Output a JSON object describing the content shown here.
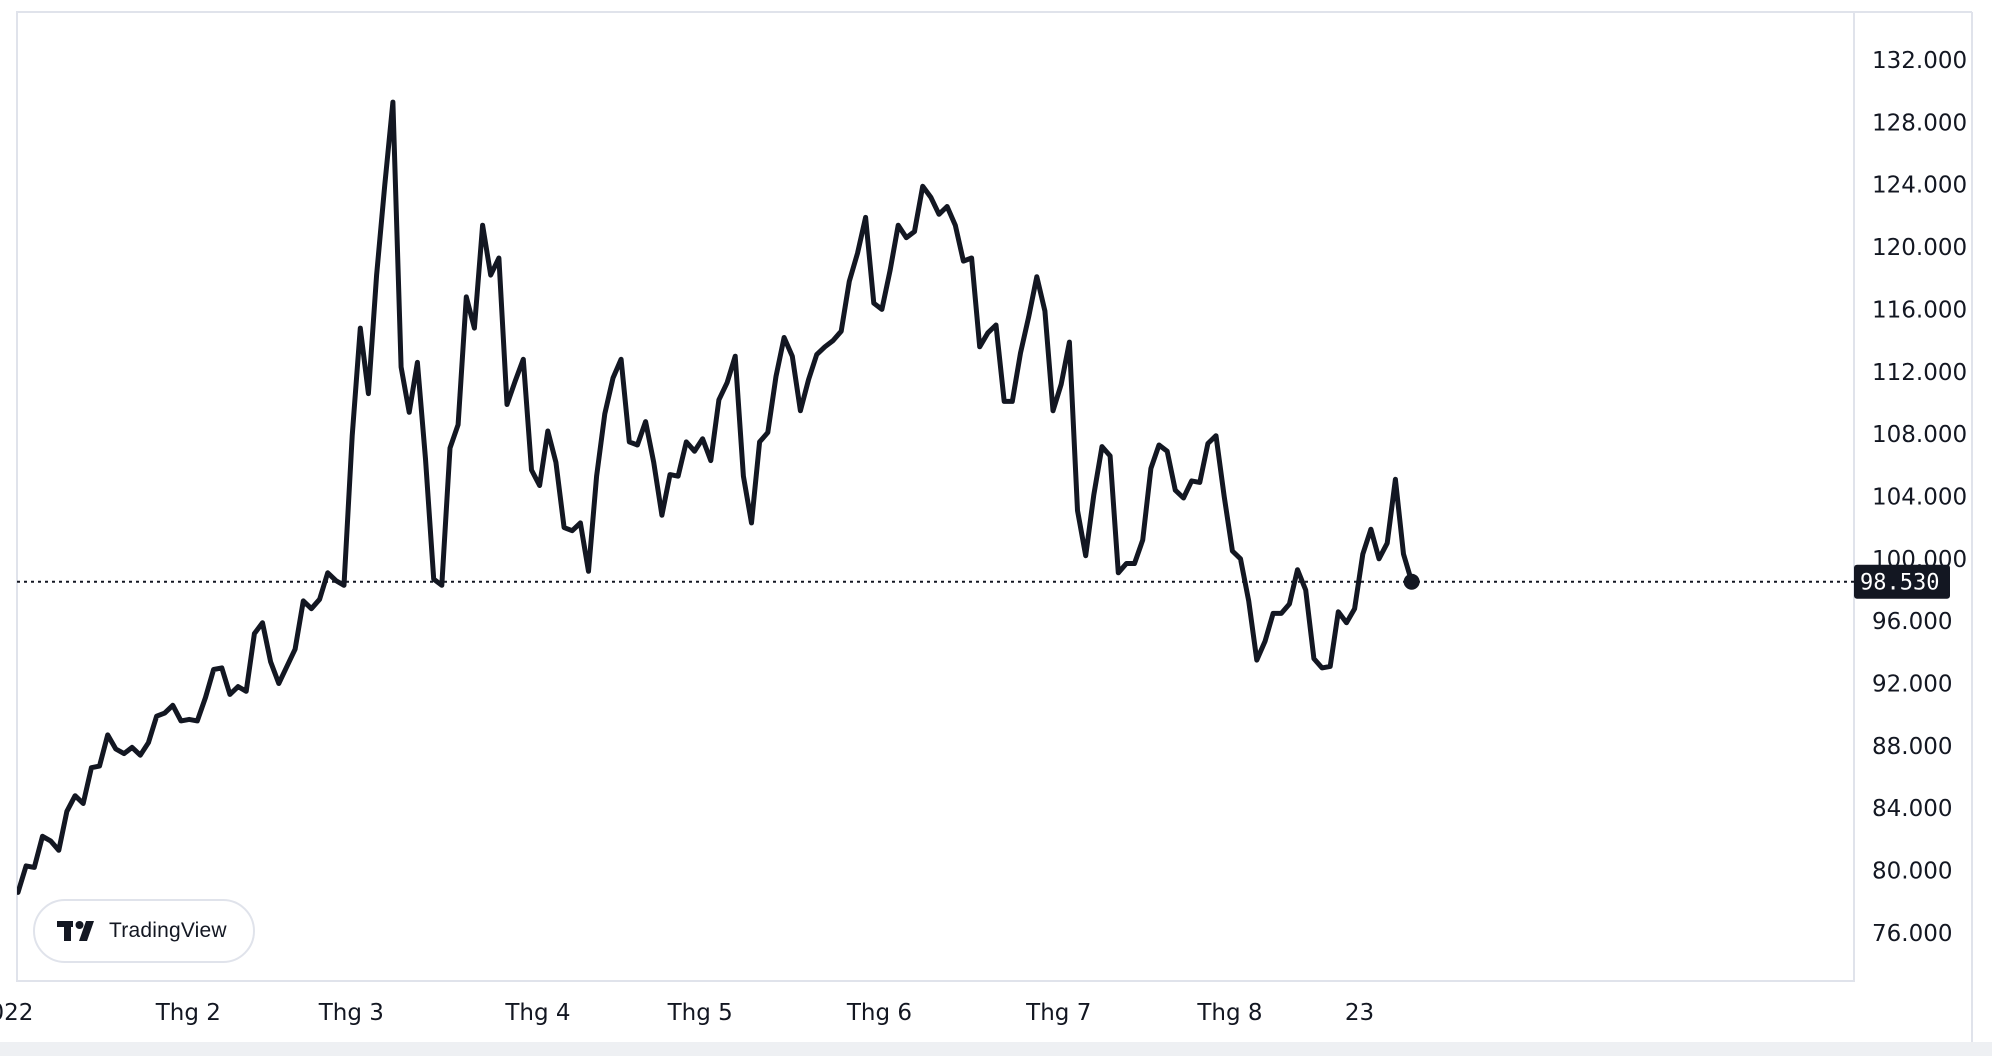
{
  "brand": {
    "name": "TradingView"
  },
  "chart_data": {
    "type": "line",
    "ylim": [
      72000,
      136000
    ],
    "y_ticks": [
      "132.000",
      "128.000",
      "124.000",
      "120.000",
      "116.000",
      "112.000",
      "108.000",
      "104.000",
      "100.000",
      "96.000",
      "92.000",
      "88.000",
      "84.000",
      "80.000",
      "76.000"
    ],
    "y_tick_values": [
      132000,
      128000,
      124000,
      120000,
      116000,
      112000,
      108000,
      104000,
      100000,
      96000,
      92000,
      88000,
      84000,
      80000,
      76000
    ],
    "x_ticks": [
      "022",
      "Thg 2",
      "Thg 3",
      "Thg 4",
      "Thg 5",
      "Thg 6",
      "Thg 7",
      "Thg 8",
      "23"
    ],
    "last_price": 98530,
    "last_price_label": "98.530",
    "line_color": "#131722",
    "price_tag_color": "#131722",
    "series": [
      {
        "values": [
          78600,
          80300,
          80200,
          82200,
          81900,
          81300,
          83800,
          84800,
          84300,
          86600,
          86700,
          88700,
          87800,
          87500,
          87900,
          87400,
          88200,
          89900,
          90100,
          90600,
          89600,
          89700,
          89600,
          91100,
          92900,
          93000,
          91300,
          91800,
          91500,
          95200,
          95900,
          93400,
          92000,
          93100,
          94200,
          97300,
          96800,
          97400,
          99100,
          98600,
          98300,
          107900,
          114800,
          110600,
          118200,
          124000,
          129300,
          112300,
          109400,
          112600,
          106400,
          98700,
          98300,
          107100,
          108600,
          116800,
          114800,
          121400,
          118200,
          119300,
          109900,
          111400,
          112800,
          105700,
          104700,
          108200,
          106200,
          102000,
          101800,
          102300,
          99200,
          105300,
          109300,
          111600,
          112800,
          107500,
          107300,
          108800,
          106200,
          102800,
          105400,
          105300,
          107500,
          106900,
          107700,
          106300,
          110200,
          111300,
          113000,
          105300,
          102300,
          107500,
          108100,
          111700,
          114200,
          113000,
          109500,
          111500,
          113100,
          113600,
          114000,
          114600,
          117800,
          119600,
          121900,
          116400,
          116000,
          118500,
          121400,
          120600,
          121000,
          123900,
          123200,
          122100,
          122600,
          121400,
          119100,
          119300,
          113600,
          114500,
          115000,
          110100,
          110100,
          113200,
          115500,
          118100,
          115900,
          109500,
          111200,
          113900,
          103100,
          100200,
          104100,
          107200,
          106600,
          99100,
          99700,
          99700,
          101200,
          105800,
          107300,
          106900,
          104400,
          103900,
          105000,
          104900,
          107400,
          107900,
          104000,
          100500,
          100000,
          97300,
          93500,
          94700,
          96500,
          96500,
          97100,
          99300,
          98000,
          93600,
          93000,
          93100,
          96600,
          95900,
          96800,
          100300,
          101900,
          100000,
          101000,
          105100,
          100300,
          98530
        ]
      }
    ],
    "x_tick_index": [
      -0.8,
      20.9,
      40.9,
      63.8,
      83.7,
      105.7,
      127.7,
      148.7,
      164.6
    ]
  }
}
